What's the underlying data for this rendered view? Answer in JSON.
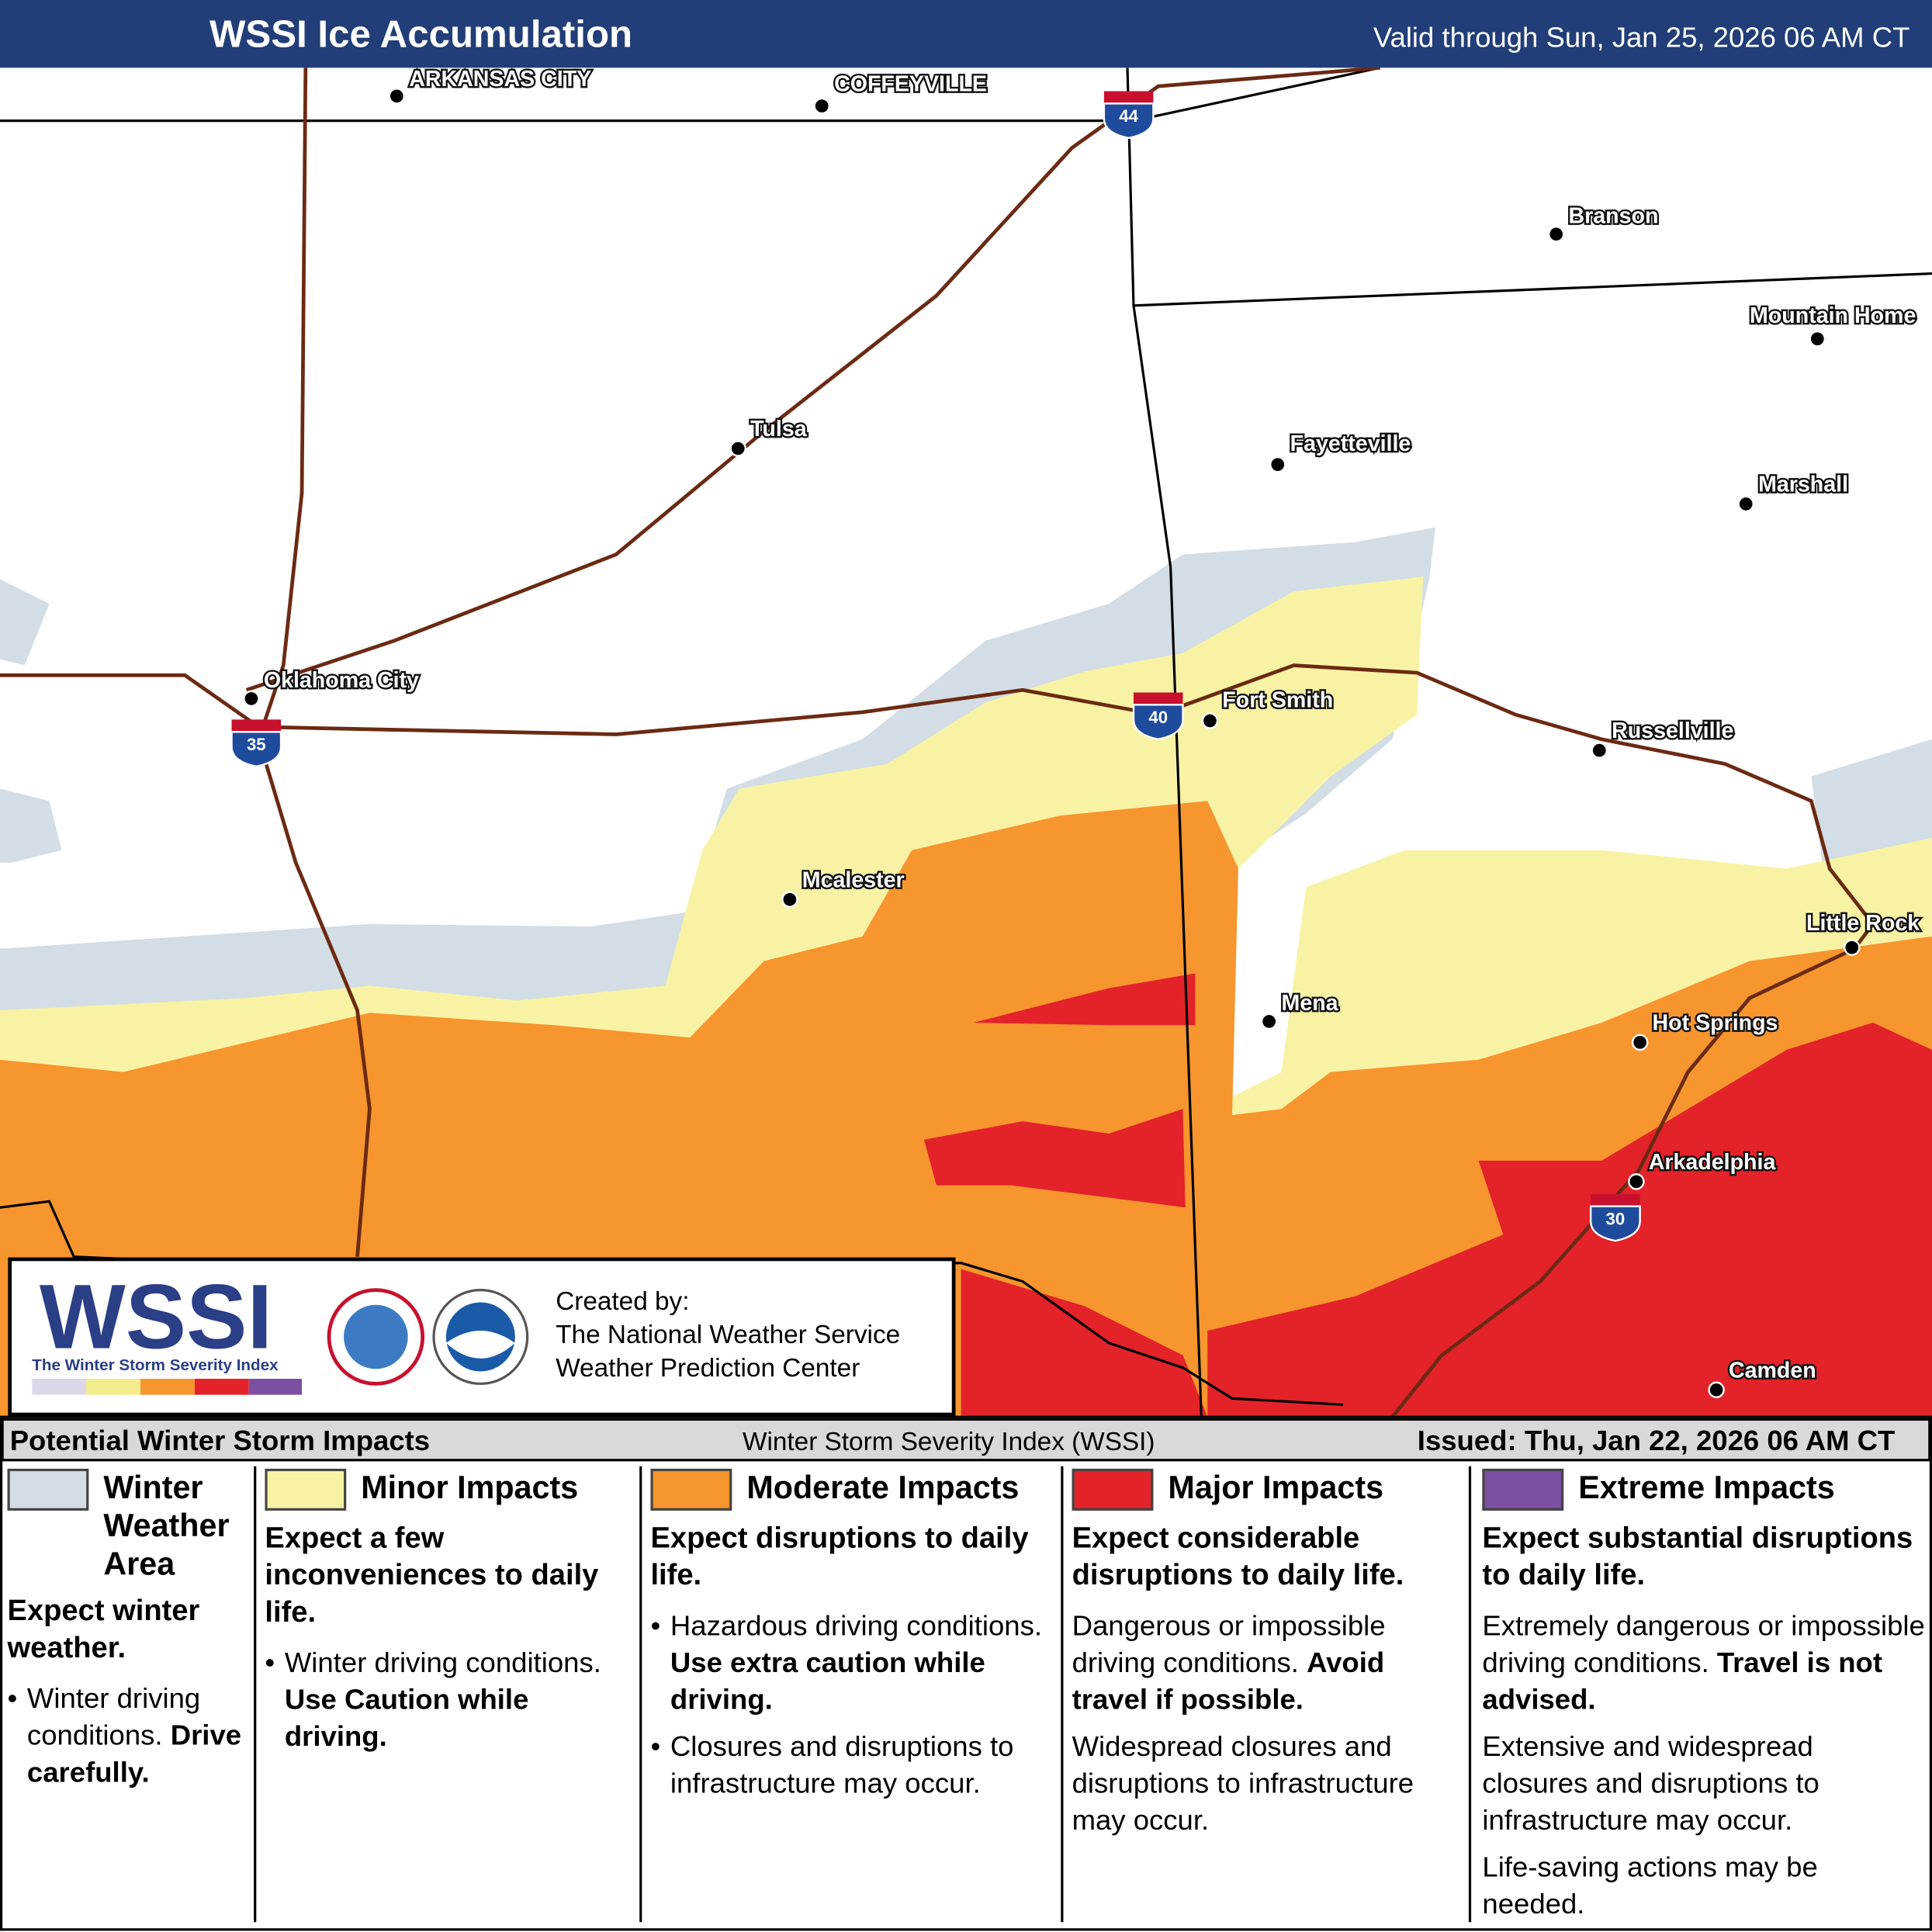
{
  "header": {
    "title": "WSSI Ice Accumulation",
    "valid": "Valid through Sun, Jan 25, 2026 06 AM CT"
  },
  "cities": [
    "ARKANSAS CITY",
    "COFFEYVILLE",
    "Branson",
    "Mountain Home",
    "Fayetteville",
    "Marshall",
    "Tulsa",
    "Oklahoma City",
    "Fort Smith",
    "Russellville",
    "Little Rock",
    "Mcalester",
    "Mena",
    "Hot Springs",
    "Arkadelphia",
    "Camden"
  ],
  "interstates": [
    "44",
    "40",
    "35",
    "30"
  ],
  "logo": {
    "title": "WSSI",
    "subtitle": "The Winter Storm Severity Index",
    "credit": [
      "Created by:",
      "The National Weather Service",
      "Weather Prediction Center"
    ]
  },
  "footer": {
    "left": "Potential Winter Storm Impacts",
    "center": "Winter Storm Severity Index (WSSI)",
    "right": "Issued: Thu, Jan 22, 2026 06 AM CT"
  },
  "legend": {
    "columns": [
      {
        "label": "Winter Weather Area",
        "color": "#d3dde5",
        "summary": "Expect winter weather.",
        "bullets": true,
        "notes": [
          {
            "text": "Winter driving conditions.",
            "emphasis": "Drive carefully."
          }
        ]
      },
      {
        "label": "Minor Impacts",
        "color": "#f8f3a4",
        "summary": "Expect a few inconveniences to daily life.",
        "bullets": true,
        "notes": [
          {
            "text": "Winter driving conditions.",
            "emphasis": "Use Caution while driving."
          }
        ]
      },
      {
        "label": "Moderate Impacts",
        "color": "#f7952f",
        "summary": "Expect disruptions to daily life.",
        "bullets": true,
        "notes": [
          {
            "text": "Hazardous driving conditions.",
            "emphasis": "Use extra caution while driving."
          },
          {
            "text": "Closures and disruptions to infrastructure may occur."
          }
        ]
      },
      {
        "label": "Major Impacts",
        "color": "#e3222a",
        "summary": "Expect considerable disruptions to daily life.",
        "bullets": false,
        "notes": [
          {
            "text": "Dangerous or impossible driving conditions.",
            "emphasis": "Avoid travel if possible."
          },
          {
            "text": "Widespread closures and disruptions to infrastructure may occur."
          }
        ]
      },
      {
        "label": "Extreme Impacts",
        "color": "#7b4fa1",
        "summary": "Expect substantial disruptions to daily life.",
        "bullets": false,
        "notes": [
          {
            "text": "Extremely dangerous or impossible driving conditions.",
            "emphasis": "Travel is not advised."
          },
          {
            "text": "Extensive and widespread closures and disruptions to infrastructure may occur."
          },
          {
            "text": "Life-saving actions may be needed."
          }
        ]
      }
    ]
  }
}
